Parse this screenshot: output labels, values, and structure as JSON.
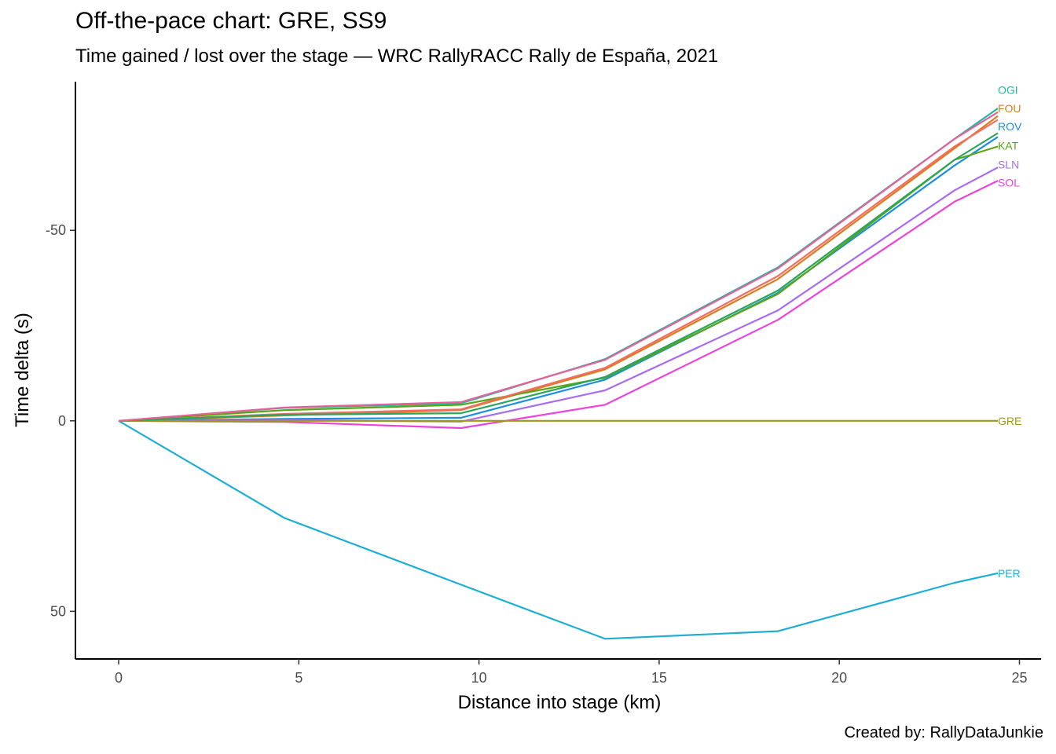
{
  "title": "Off-the-pace chart: GRE, SS9",
  "subtitle": "Time gained / lost over the stage — WRC RallyRACC Rally de España, 2021",
  "caption": "Created by: RallyDataJunkie",
  "chart_data": {
    "type": "line",
    "xlabel": "Distance into stage (km)",
    "ylabel": "Time delta (s)",
    "xlim": [
      -1.2,
      25.6
    ],
    "ylim": [
      62.5,
      -89
    ],
    "y_reversed": true,
    "xticks": [
      0,
      5,
      10,
      15,
      20,
      25
    ],
    "yticks": [
      -50,
      0,
      50
    ],
    "grid": false,
    "legend": "direct labels at line ends",
    "x": [
      0,
      4.6,
      9.5,
      13.5,
      18.3,
      23.2,
      24.4
    ],
    "series": [
      {
        "name": "OGI",
        "color": "#20b8a0",
        "values": [
          0,
          -3.4,
          -4.6,
          -16.2,
          -40.3,
          -74.0,
          -82.0
        ]
      },
      {
        "name": "FOU",
        "color": "#db7d1e",
        "values": [
          0,
          -1.4,
          -2.8,
          -13.5,
          -37.2,
          -71.5,
          -80.0
        ]
      },
      {
        "name": "ROV",
        "color": "#1c8ee6",
        "values": [
          0,
          -0.5,
          -0.8,
          -10.8,
          -33.6,
          -67.0,
          -74.5
        ]
      },
      {
        "name": "KAT",
        "color": "#5aa514",
        "values": [
          0,
          -2.8,
          -4.2,
          -11.3,
          -33.3,
          -68.5,
          -72.0
        ]
      },
      {
        "name": "SLN",
        "color": "#a86cf0",
        "values": [
          0,
          -0.2,
          0.2,
          -8.0,
          -29.0,
          -60.5,
          -66.5
        ]
      },
      {
        "name": "SOL",
        "color": "#ea44db",
        "values": [
          0,
          0.3,
          1.9,
          -4.2,
          -26.5,
          -57.5,
          -63.0
        ]
      },
      {
        "name": "GRE",
        "color": "#9d9a12",
        "values": [
          0,
          0,
          0,
          0,
          0,
          0,
          0
        ]
      },
      {
        "name": "PER",
        "color": "#1eaed3",
        "values": [
          0,
          25.5,
          43.0,
          57.2,
          55.2,
          42.5,
          40.0
        ]
      },
      {
        "name": "",
        "color": "#f26d63",
        "values": [
          0,
          -1.8,
          -3.0,
          -13.9,
          -38.0,
          -72.0,
          -79.0
        ]
      },
      {
        "name": "",
        "color": "#2aa65a",
        "values": [
          0,
          -1.6,
          -2.0,
          -11.5,
          -34.2,
          -68.5,
          -75.5
        ]
      },
      {
        "name": "",
        "color": "#e8609a",
        "values": [
          0,
          -3.5,
          -4.9,
          -16.0,
          -40.0,
          -74.0,
          -81.0
        ]
      }
    ],
    "end_labels": [
      {
        "text": "OGI",
        "color": "#20b8a0",
        "y": -86.8
      },
      {
        "text": "FOU",
        "color": "#db7d1e",
        "y": -82.0
      },
      {
        "text": "ROV",
        "color": "#1c8ee6",
        "y": -77.2
      },
      {
        "text": "KAT",
        "color": "#5aa514",
        "y": -72.2
      },
      {
        "text": "SLN",
        "color": "#a86cf0",
        "y": -67.3
      },
      {
        "text": "SOL",
        "color": "#ea44db",
        "y": -62.5
      },
      {
        "text": "GRE",
        "color": "#9d9a12",
        "y": 0
      },
      {
        "text": "PER",
        "color": "#1eaed3",
        "y": 40.0
      }
    ]
  }
}
